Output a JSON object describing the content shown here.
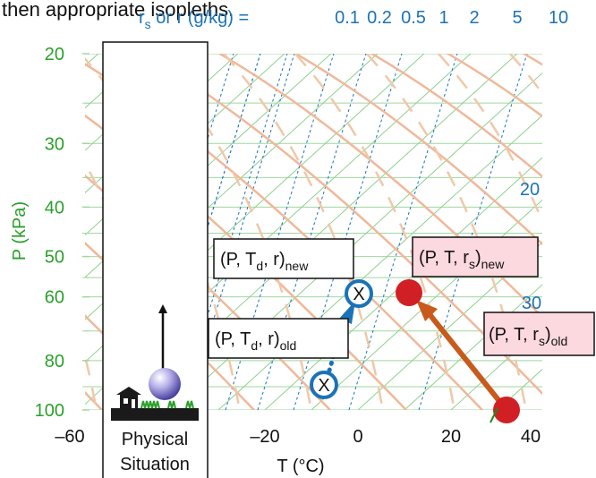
{
  "caption_fragment": "then appropriate isopleths.",
  "mixing_ratio_header": {
    "prefix": "r",
    "sub": "s",
    "rest": " or  r (g/kg) =",
    "values": [
      "0.1",
      "0.2",
      "0.5",
      "1",
      "2",
      "5",
      "10"
    ]
  },
  "y_axis": {
    "label": "P (kPa)",
    "ticks": [
      {
        "value": 20,
        "label": "20"
      },
      {
        "value": 30,
        "label": "30"
      },
      {
        "value": 40,
        "label": "40"
      },
      {
        "value": 50,
        "label": "50"
      },
      {
        "value": 60,
        "label": "60"
      },
      {
        "value": 80,
        "label": "80"
      },
      {
        "value": 100,
        "label": "100"
      }
    ],
    "range": [
      20,
      100
    ],
    "scale": "log",
    "color": "#2aa02a"
  },
  "x_axis": {
    "label": "T (°C)",
    "ticks": [
      {
        "value": -60,
        "label": "–60"
      },
      {
        "value": -20,
        "label": "–20"
      },
      {
        "value": 0,
        "label": "0"
      },
      {
        "value": 20,
        "label": "20"
      },
      {
        "value": 40,
        "label": "40"
      }
    ],
    "range": [
      -60,
      40
    ]
  },
  "right_labels": [
    "20",
    "30"
  ],
  "physical_panel": {
    "label_line1": "Physical",
    "label_line2": "Situation"
  },
  "points": {
    "dew_old": {
      "T": -7,
      "P": 92
    },
    "dew_new": {
      "T": 0.5,
      "P": 60
    },
    "temp_old": {
      "T": 33,
      "P": 93
    },
    "temp_new": {
      "T": 11,
      "P": 60
    }
  },
  "markers": {
    "dew_symbol": "X"
  },
  "labels": {
    "dew_new": {
      "base": "(P, T",
      "sub1": "d",
      "mid": ", r)",
      "sub2": "new"
    },
    "dew_old": {
      "base": "(P, T",
      "sub1": "d",
      "mid": ", r)",
      "sub2": "old"
    },
    "temp_new": {
      "base": "(P, T, r",
      "sub1": "s",
      "mid": ")",
      "sub2": "new"
    },
    "temp_old": {
      "base": "(P, T, r",
      "sub1": "s",
      "mid": ")",
      "sub2": "old"
    }
  },
  "colors": {
    "green_isotherm": "#8fd08f",
    "isobar": "#9ed89e",
    "mixing_ratio": "#1a73b8",
    "dry_adiabat": "#f0b89a",
    "moist_adiabat": "#f0c8a8",
    "temp_point": "#d11f26",
    "dew_point": "#1a73b8",
    "arrow_temp": "#c85a1c",
    "label_box_pink": "#fbd9de",
    "sphere": "#8d86cf"
  }
}
